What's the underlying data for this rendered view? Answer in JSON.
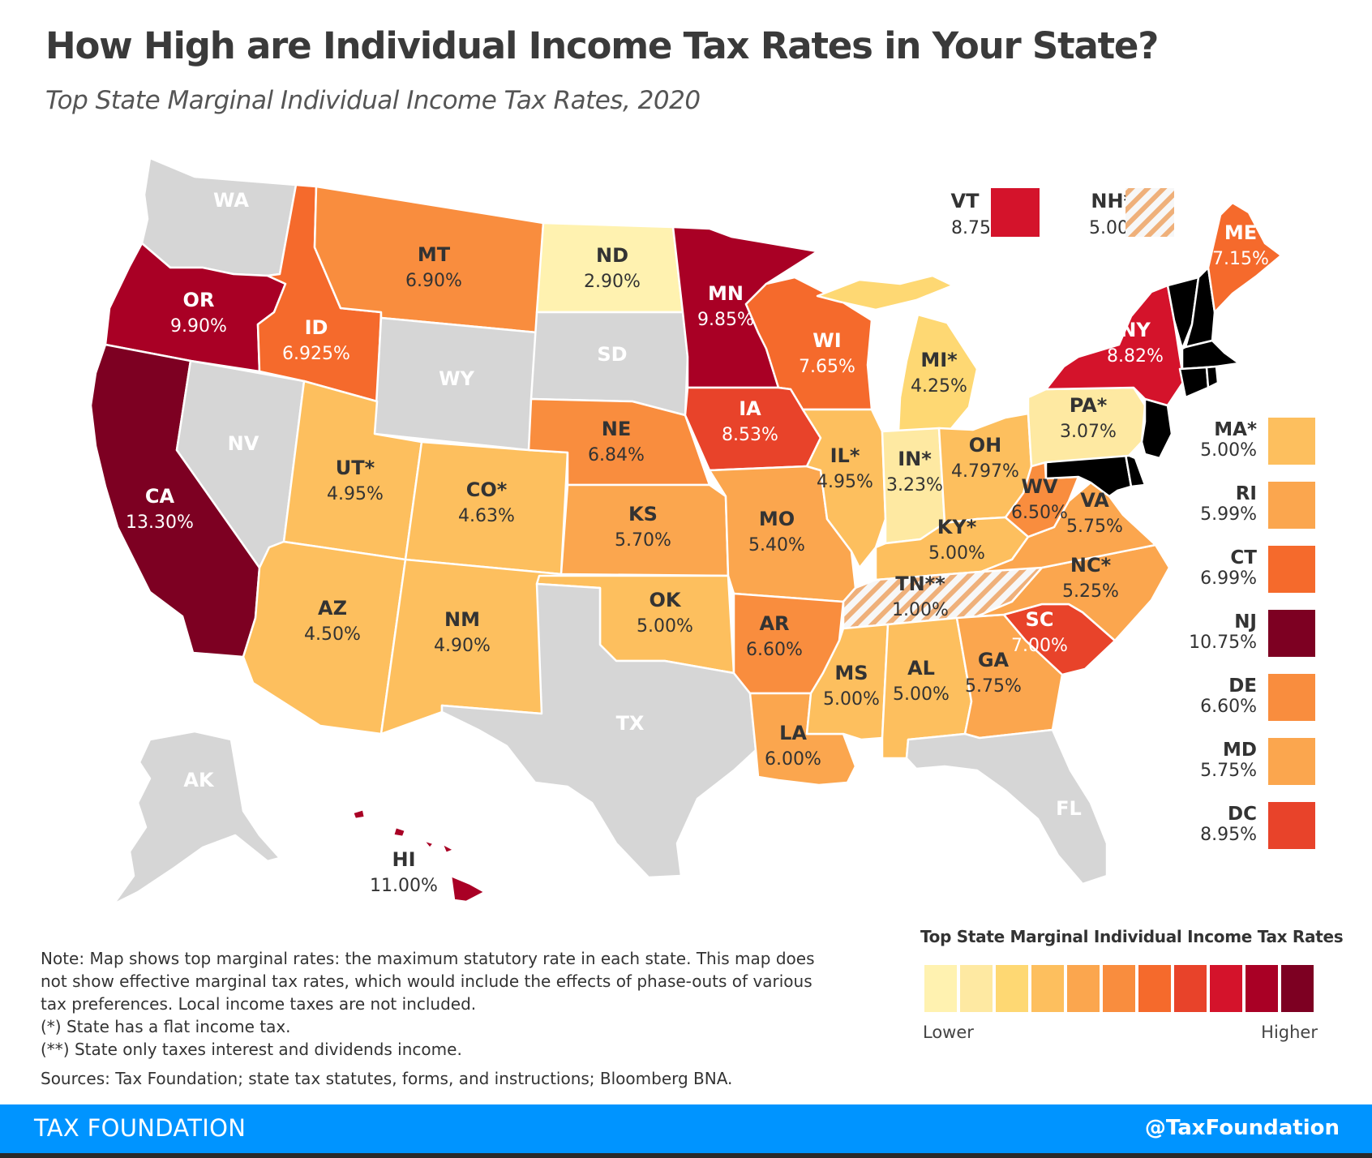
{
  "title": "How High are Individual Income Tax Rates in Your State?",
  "subtitle": "Top State Marginal Individual Income Tax Rates, 2020",
  "colors": {
    "no_tax": "#d6d6d6",
    "scale": [
      "#fff2b0",
      "#fee9a2",
      "#fed873",
      "#fdbf5e",
      "#fba64e",
      "#f98d3e",
      "#f56a2c",
      "#e8432a",
      "#d4132b",
      "#a90025",
      "#7d0022"
    ],
    "hatch": "#efb07a"
  },
  "map": {
    "states": {
      "WA": {
        "label": "WA",
        "rate": "",
        "tier": "none"
      },
      "OR": {
        "label": "OR",
        "rate": "9.90%",
        "tier": 9
      },
      "CA": {
        "label": "CA",
        "rate": "13.30%",
        "tier": 10
      },
      "NV": {
        "label": "NV",
        "rate": "",
        "tier": "none"
      },
      "ID": {
        "label": "ID",
        "rate": "6.925%",
        "tier": 6
      },
      "MT": {
        "label": "MT",
        "rate": "6.90%",
        "tier": 5
      },
      "WY": {
        "label": "WY",
        "rate": "",
        "tier": "none"
      },
      "UT": {
        "label": "UT*",
        "rate": "4.95%",
        "tier": 3
      },
      "AZ": {
        "label": "AZ",
        "rate": "4.50%",
        "tier": 3
      },
      "CO": {
        "label": "CO*",
        "rate": "4.63%",
        "tier": 3
      },
      "NM": {
        "label": "NM",
        "rate": "4.90%",
        "tier": 3
      },
      "ND": {
        "label": "ND",
        "rate": "2.90%",
        "tier": 0
      },
      "SD": {
        "label": "SD",
        "rate": "",
        "tier": "none"
      },
      "NE": {
        "label": "NE",
        "rate": "6.84%",
        "tier": 5
      },
      "KS": {
        "label": "KS",
        "rate": "5.70%",
        "tier": 4
      },
      "OK": {
        "label": "OK",
        "rate": "5.00%",
        "tier": 3
      },
      "TX": {
        "label": "TX",
        "rate": "",
        "tier": "none"
      },
      "MN": {
        "label": "MN",
        "rate": "9.85%",
        "tier": 9
      },
      "IA": {
        "label": "IA",
        "rate": "8.53%",
        "tier": 7
      },
      "MO": {
        "label": "MO",
        "rate": "5.40%",
        "tier": 4
      },
      "AR": {
        "label": "AR",
        "rate": "6.60%",
        "tier": 5
      },
      "LA": {
        "label": "LA",
        "rate": "6.00%",
        "tier": 4
      },
      "WI": {
        "label": "WI",
        "rate": "7.65%",
        "tier": 6
      },
      "IL": {
        "label": "IL*",
        "rate": "4.95%",
        "tier": 3
      },
      "MI": {
        "label": "MI*",
        "rate": "4.25%",
        "tier": 2
      },
      "IN": {
        "label": "IN*",
        "rate": "3.23%",
        "tier": 1
      },
      "OH": {
        "label": "OH",
        "rate": "4.797%",
        "tier": 3
      },
      "KY": {
        "label": "KY*",
        "rate": "5.00%",
        "tier": 3
      },
      "TN": {
        "label": "TN**",
        "rate": "1.00%",
        "tier": "hatch"
      },
      "MS": {
        "label": "MS",
        "rate": "5.00%",
        "tier": 3
      },
      "AL": {
        "label": "AL",
        "rate": "5.00%",
        "tier": 3
      },
      "GA": {
        "label": "GA",
        "rate": "5.75%",
        "tier": 4
      },
      "FL": {
        "label": "FL",
        "rate": "",
        "tier": "none"
      },
      "SC": {
        "label": "SC",
        "rate": "7.00%",
        "tier": 7
      },
      "NC": {
        "label": "NC*",
        "rate": "5.25%",
        "tier": 4
      },
      "VA": {
        "label": "VA",
        "rate": "5.75%",
        "tier": 4
      },
      "WV": {
        "label": "WV",
        "rate": "6.50%",
        "tier": 5
      },
      "PA": {
        "label": "PA*",
        "rate": "3.07%",
        "tier": 1
      },
      "NY": {
        "label": "NY",
        "rate": "8.82%",
        "tier": 8
      },
      "ME": {
        "label": "ME",
        "rate": "7.15%",
        "tier": 6
      },
      "AK": {
        "label": "AK",
        "rate": "",
        "tier": "none"
      },
      "HI": {
        "label": "HI",
        "rate": "11.00%",
        "tier": 9
      }
    },
    "callouts": [
      {
        "label": "VT",
        "rate": "8.75%",
        "tier": 8
      },
      {
        "label": "NH**",
        "rate": "5.00%",
        "tier": "hatch"
      }
    ]
  },
  "side_legend": [
    {
      "label": "MA*",
      "rate": "5.00%",
      "tier": 3
    },
    {
      "label": "RI",
      "rate": "5.99%",
      "tier": 4
    },
    {
      "label": "CT",
      "rate": "6.99%",
      "tier": 6
    },
    {
      "label": "NJ",
      "rate": "10.75%",
      "tier": 10
    },
    {
      "label": "DE",
      "rate": "6.60%",
      "tier": 5
    },
    {
      "label": "MD",
      "rate": "5.75%",
      "tier": 4
    },
    {
      "label": "DC",
      "rate": "8.95%",
      "tier": 7
    }
  ],
  "scale_legend": {
    "title": "Top State Marginal Individual Income Tax Rates",
    "low": "Lower",
    "high": "Higher"
  },
  "notes": [
    "Note: Map shows top marginal rates: the maximum statutory rate in each state. This map does not show effective marginal tax rates, which would include the effects of phase-outs of various tax preferences. Local income taxes are not included.",
    "(*) State has a flat income tax.",
    "(**) State only taxes interest and dividends income."
  ],
  "sources": "Sources: Tax Foundation; state tax statutes, forms, and instructions; Bloomberg BNA.",
  "footer": {
    "brand": "TAX FOUNDATION",
    "handle": "@TaxFoundation"
  }
}
